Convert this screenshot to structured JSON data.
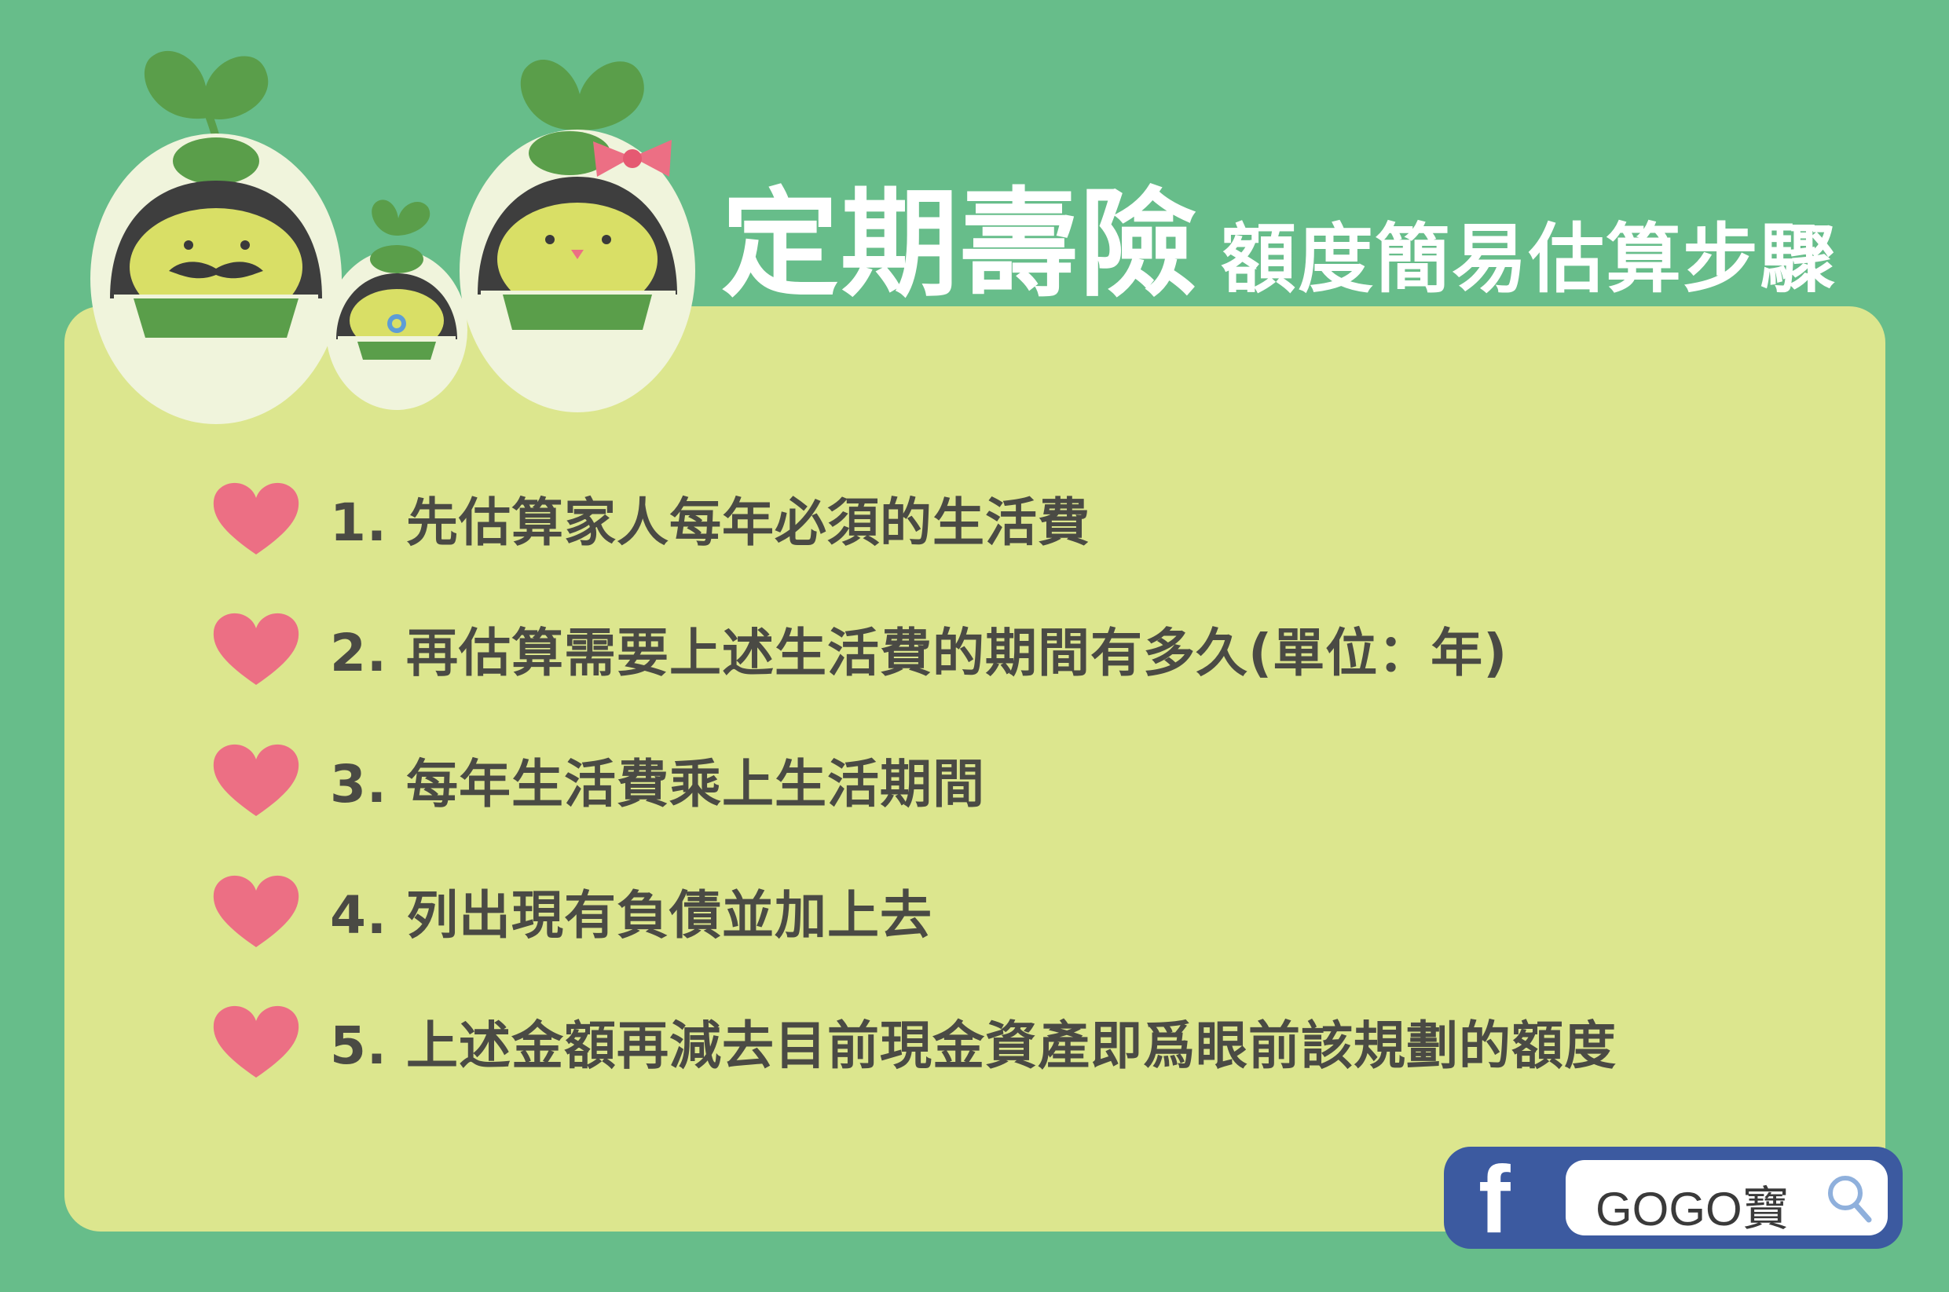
{
  "title": {
    "main": "定期壽險",
    "sub": "額度簡易估算步驟"
  },
  "steps": [
    "1. 先估算家人每年必須的生活費",
    "2. 再估算需要上述生活費的期間有多久(單位：年)",
    "3. 每年生活費乘上生活期間",
    "4. 列出現有負債並加上去",
    "5. 上述金額再減去目前現金資產即爲眼前該規劃的額度"
  ],
  "brand": {
    "icon": "facebook-icon",
    "search_text": "GOGO寶",
    "search_icon": "magnifier-icon"
  },
  "colors": {
    "background": "#67bd8a",
    "panel": "#dce68e",
    "heart": "#ec6f84",
    "facebook": "#3c5aa0"
  }
}
